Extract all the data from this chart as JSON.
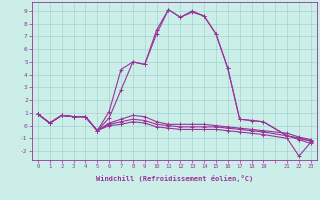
{
  "bg_color": "#cceee8",
  "line_color": "#993399",
  "marker": "+",
  "markersize": 3,
  "linewidth": 0.8,
  "xlabel": "Windchill (Refroidissement éolien,°C)",
  "xlim": [
    -0.5,
    23.5
  ],
  "ylim": [
    -2.7,
    9.7
  ],
  "xtick_labels": [
    "0",
    "1",
    "2",
    "3",
    "4",
    "5",
    "6",
    "7",
    "8",
    "9",
    "10",
    "11",
    "12",
    "13",
    "14",
    "15",
    "16",
    "17",
    "18",
    "19",
    "",
    "21",
    "22",
    "23"
  ],
  "xtick_pos": [
    0,
    1,
    2,
    3,
    4,
    5,
    6,
    7,
    8,
    9,
    10,
    11,
    12,
    13,
    14,
    15,
    16,
    17,
    18,
    19,
    20,
    21,
    22,
    23
  ],
  "yticks": [
    -2,
    -1,
    0,
    1,
    2,
    3,
    4,
    5,
    6,
    7,
    8,
    9
  ],
  "lines": [
    {
      "x": [
        0,
        1,
        2,
        3,
        4,
        5,
        6,
        7,
        8,
        9,
        10,
        11,
        12,
        13,
        14,
        15,
        16,
        17,
        18,
        19,
        21,
        22,
        23
      ],
      "y": [
        0.9,
        0.2,
        0.8,
        0.7,
        0.7,
        -0.4,
        1.1,
        4.4,
        5.0,
        4.8,
        7.5,
        9.1,
        8.5,
        9.0,
        8.6,
        7.2,
        4.5,
        0.5,
        0.4,
        0.3,
        -0.8,
        -1.0,
        -1.2
      ]
    },
    {
      "x": [
        0,
        1,
        2,
        3,
        4,
        5,
        6,
        7,
        8,
        9,
        10,
        11,
        12,
        13,
        14,
        15,
        16,
        17,
        18,
        19,
        21,
        22,
        23
      ],
      "y": [
        0.9,
        0.2,
        0.8,
        0.7,
        0.7,
        -0.4,
        0.6,
        2.8,
        5.0,
        4.8,
        7.2,
        9.1,
        8.5,
        8.9,
        8.6,
        7.2,
        4.5,
        0.5,
        0.4,
        0.3,
        -0.8,
        -1.0,
        -1.2
      ]
    },
    {
      "x": [
        0,
        1,
        2,
        3,
        4,
        5,
        6,
        7,
        8,
        9,
        10,
        11,
        12,
        13,
        14,
        15,
        16,
        17,
        18,
        19,
        21,
        22,
        23
      ],
      "y": [
        0.9,
        0.2,
        0.8,
        0.7,
        0.7,
        -0.4,
        0.2,
        0.5,
        0.8,
        0.7,
        0.3,
        0.1,
        0.1,
        0.1,
        0.1,
        0.0,
        -0.1,
        -0.2,
        -0.3,
        -0.4,
        -0.6,
        -0.9,
        -1.1
      ]
    },
    {
      "x": [
        0,
        1,
        2,
        3,
        4,
        5,
        6,
        7,
        8,
        9,
        10,
        11,
        12,
        13,
        14,
        15,
        16,
        17,
        18,
        19,
        21,
        22,
        23
      ],
      "y": [
        0.9,
        0.2,
        0.8,
        0.7,
        0.7,
        -0.4,
        0.1,
        0.3,
        0.5,
        0.4,
        0.1,
        0.0,
        -0.1,
        -0.1,
        -0.1,
        -0.1,
        -0.2,
        -0.3,
        -0.4,
        -0.5,
        -0.8,
        -1.1,
        -1.4
      ]
    },
    {
      "x": [
        0,
        1,
        2,
        3,
        4,
        5,
        6,
        7,
        8,
        9,
        10,
        11,
        12,
        13,
        14,
        15,
        16,
        17,
        18,
        19,
        21,
        22,
        23
      ],
      "y": [
        0.9,
        0.2,
        0.8,
        0.7,
        0.7,
        -0.4,
        0.0,
        0.1,
        0.3,
        0.2,
        -0.1,
        -0.2,
        -0.3,
        -0.3,
        -0.3,
        -0.3,
        -0.4,
        -0.5,
        -0.6,
        -0.7,
        -1.0,
        -2.4,
        -1.3
      ]
    }
  ]
}
